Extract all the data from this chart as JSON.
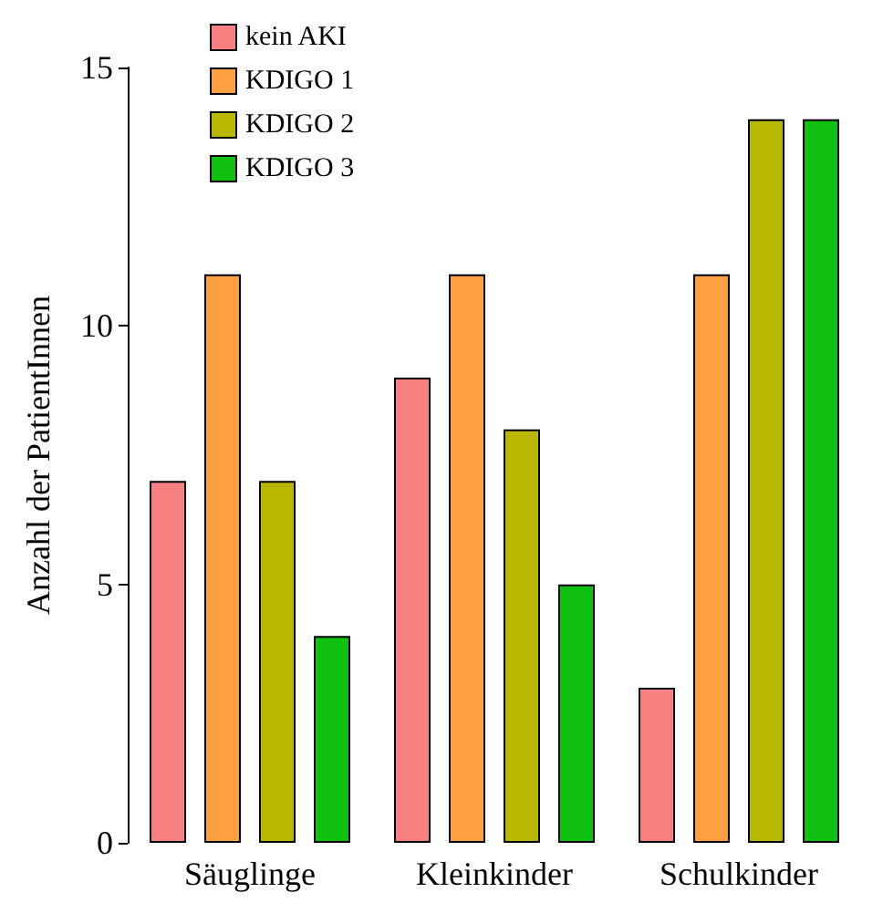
{
  "chart_data": {
    "type": "bar",
    "ylabel": "Anzahl der PatientInnen",
    "categories": [
      "Säuglinge",
      "Kleinkinder",
      "Schulkinder"
    ],
    "series": [
      {
        "name": "kein AKI",
        "color": "#f88080",
        "values": [
          7,
          9,
          3
        ]
      },
      {
        "name": "KDIGO 1",
        "color": "#ffa040",
        "values": [
          11,
          11,
          11
        ]
      },
      {
        "name": "KDIGO 2",
        "color": "#b8b800",
        "values": [
          7,
          8,
          14
        ]
      },
      {
        "name": "KDIGO 3",
        "color": "#10c010",
        "values": [
          4,
          5,
          14
        ]
      }
    ],
    "ylim": [
      0,
      15
    ],
    "yticks": [
      0,
      5,
      10,
      15
    ],
    "grid": false,
    "legend": "top left"
  }
}
